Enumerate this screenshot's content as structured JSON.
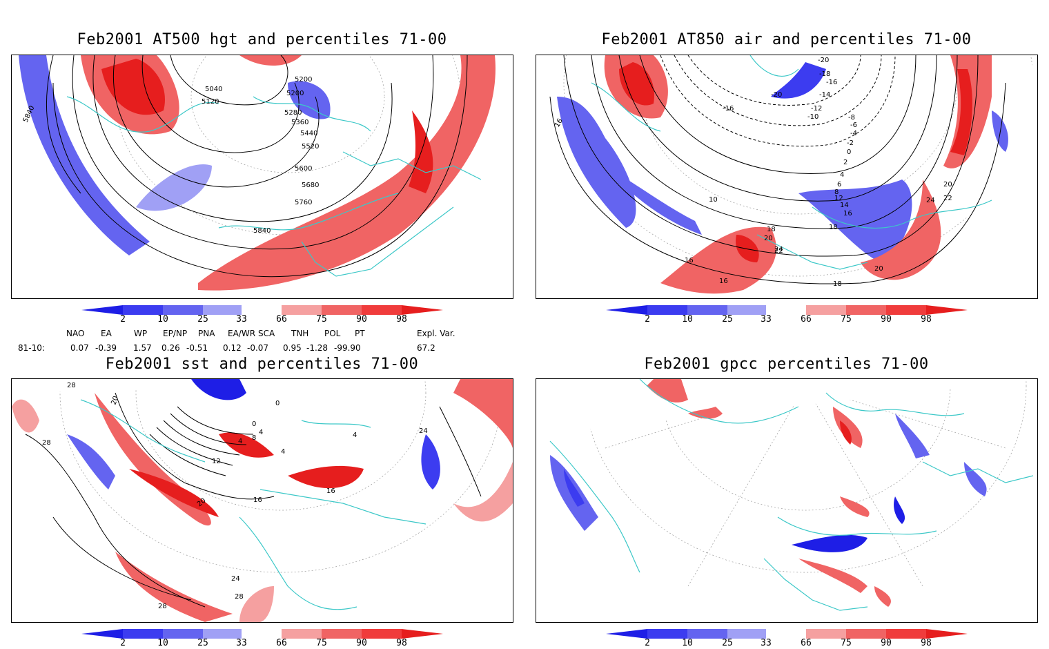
{
  "panels": [
    {
      "title": "Feb2001 AT500 hgt and percentiles 71-00",
      "contour_labels": [
        "5040",
        "5120",
        "5200",
        "5200",
        "5280",
        "5360",
        "5440",
        "5520",
        "5600",
        "5680",
        "5760",
        "5840",
        "5840"
      ]
    },
    {
      "title": "Feb2001 AT850 air and percentiles 71-00",
      "contour_labels": [
        "-20",
        "-18",
        "-16",
        "-14",
        "-12",
        "-10",
        "-8",
        "-6",
        "-4",
        "-2",
        "0",
        "2",
        "4",
        "6",
        "8",
        "10",
        "12",
        "14",
        "16",
        "18",
        "20",
        "22",
        "24",
        "16",
        "16",
        "18",
        "20",
        "22",
        "24",
        "18",
        "20",
        "16",
        "-20",
        "-16"
      ]
    },
    {
      "title": "Feb2001 sst and percentiles 71-00",
      "contour_labels": [
        "28",
        "28",
        "20",
        "0",
        "0",
        "4",
        "8",
        "4",
        "4",
        "12",
        "16",
        "20",
        "16",
        "24",
        "24",
        "28",
        "28",
        "4"
      ]
    },
    {
      "title": "Feb2001 gpcc percentiles 71-00",
      "contour_labels": []
    }
  ],
  "colorbar": {
    "labels": [
      "2",
      "10",
      "25",
      "33",
      "66",
      "75",
      "90",
      "98"
    ],
    "colors": [
      "#1e1ee6",
      "#3c3cf0",
      "#6464f0",
      "#a0a0f5",
      "#ffffff",
      "#f5a0a0",
      "#f06464",
      "#f03c3c",
      "#e61e1e"
    ]
  },
  "indices": {
    "names": [
      "NAO",
      "EA",
      "WP",
      "EP/NP",
      "PNA",
      "EA/WR",
      "SCA",
      "TNH",
      "POL",
      "PT",
      "Expl. Var."
    ],
    "row_label": "81-10:",
    "values": [
      "0.07",
      "-0.39",
      "1.57",
      "0.26",
      "-0.51",
      "0.12",
      "-0.07",
      "0.95",
      "-1.28",
      "-99.90",
      "67.2"
    ]
  },
  "colors": {
    "coast": "#3cc8c8",
    "pos": "#f03c3c",
    "neg": "#4b4bf0"
  }
}
